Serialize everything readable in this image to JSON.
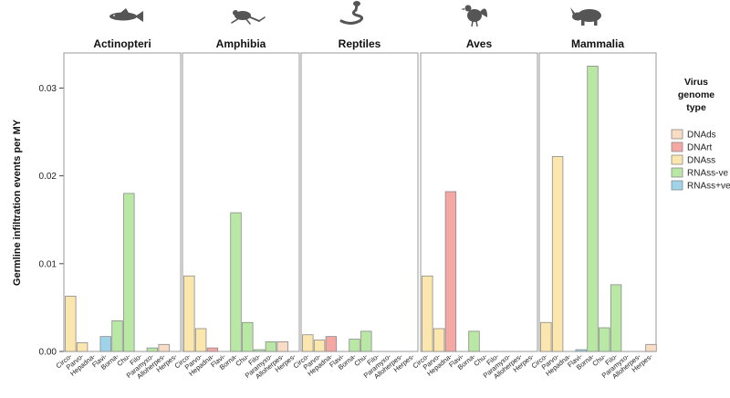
{
  "chart_data": {
    "type": "bar",
    "ylabel": "Germline infiltration events per MY",
    "ylim": [
      0,
      0.034
    ],
    "yticks": [
      "0.00",
      "0.01",
      "0.02",
      "0.03"
    ],
    "ytick_values": [
      0,
      0.01,
      0.02,
      0.03
    ],
    "grid": false,
    "legend_position": "right",
    "categories": [
      "Circo-",
      "Parvo-",
      "Hepadna-",
      "Flavi-",
      "Borna-",
      "Chu-",
      "Filo-",
      "Paramyxo-",
      "Alloherpes-",
      "Herpes-"
    ],
    "category_types": [
      "DNAss",
      "DNAss",
      "DNArt",
      "RNAss+ve",
      "RNAss-ve",
      "RNAss-ve",
      "RNAss-ve",
      "RNAss-ve",
      "DNAds",
      "DNAds"
    ],
    "legend": {
      "title_lines": [
        "Virus",
        "genome",
        "type"
      ],
      "entries": [
        {
          "name": "DNAds",
          "color": "#f9dcc4"
        },
        {
          "name": "DNArt",
          "color": "#f4a7a3"
        },
        {
          "name": "DNAss",
          "color": "#fbe6ad"
        },
        {
          "name": "RNAss-ve",
          "color": "#b9e8a4"
        },
        {
          "name": "RNAss+ve",
          "color": "#9ed3ea"
        }
      ]
    },
    "panels": [
      {
        "title": "Actinopteri",
        "icon": "fish-icon",
        "values": [
          0.0063,
          0.001,
          0,
          0.0017,
          0.0035,
          0.018,
          0,
          0.0004,
          0.0008,
          0
        ]
      },
      {
        "title": "Amphibia",
        "icon": "frog-icon",
        "values": [
          0.0086,
          0.0026,
          0.0004,
          0,
          0.0158,
          0.0033,
          0.0002,
          0.0011,
          0.0011,
          0
        ]
      },
      {
        "title": "Reptiles",
        "icon": "snake-icon",
        "values": [
          0.0019,
          0.0013,
          0.0017,
          0,
          0.0014,
          0.0023,
          0,
          0,
          0,
          0
        ]
      },
      {
        "title": "Aves",
        "icon": "bird-icon",
        "values": [
          0.0086,
          0.0026,
          0.0182,
          0,
          0.0023,
          0,
          0,
          0,
          0,
          0
        ]
      },
      {
        "title": "Mammalia",
        "icon": "rhino-icon",
        "values": [
          0.0033,
          0.0222,
          0,
          0.0002,
          0.0325,
          0.0027,
          0.0076,
          0,
          0,
          0.0008
        ]
      }
    ]
  }
}
